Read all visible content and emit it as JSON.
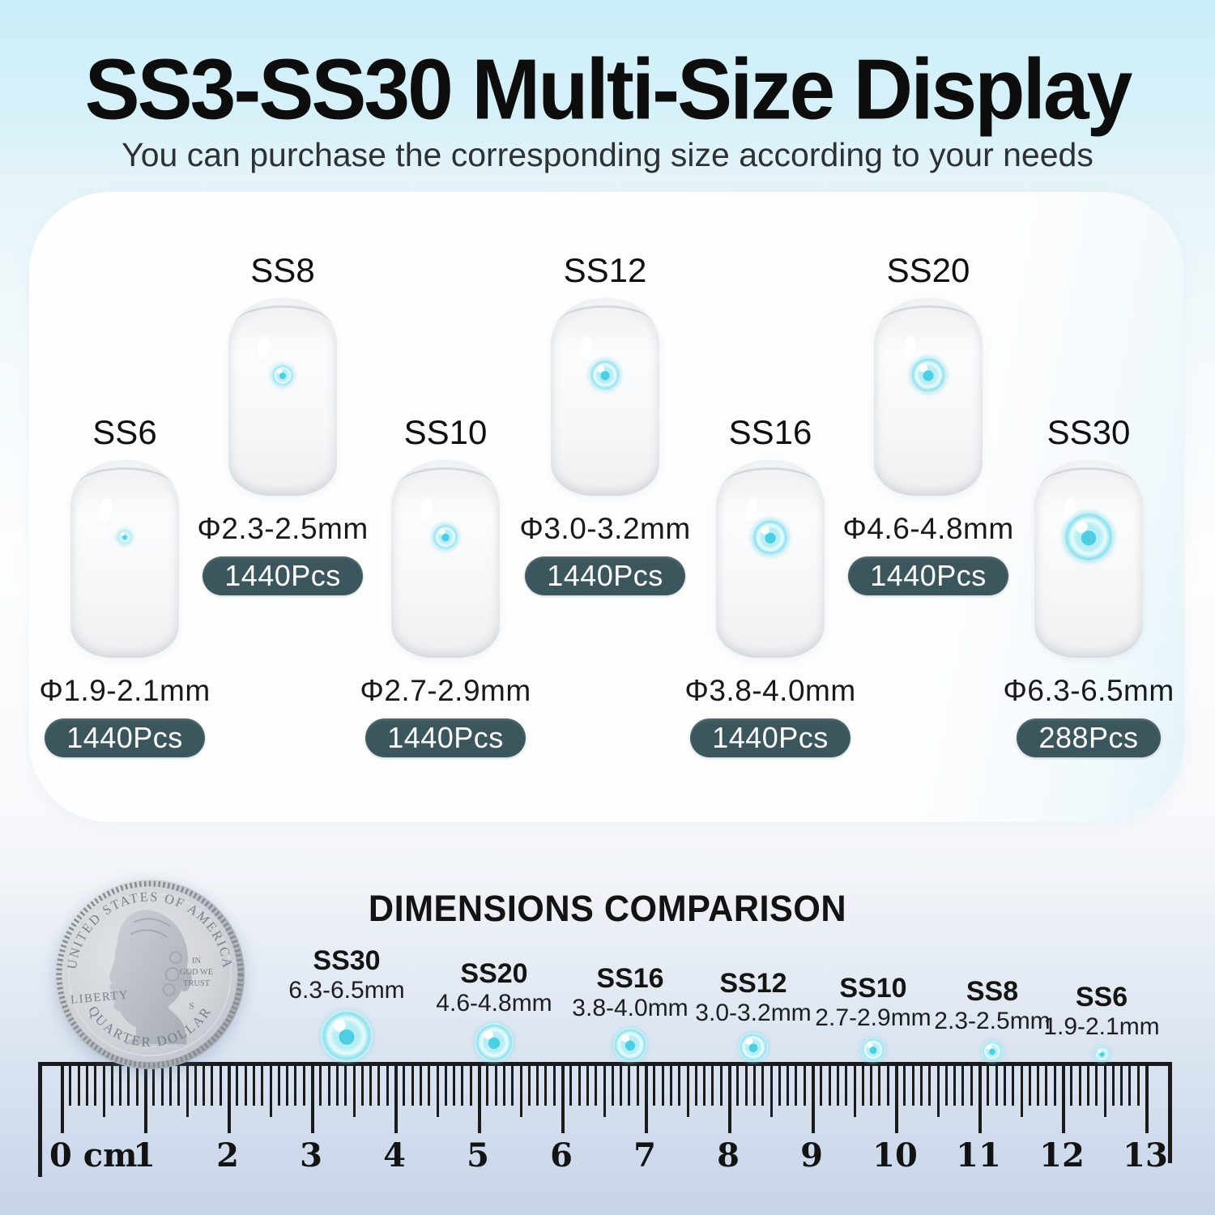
{
  "header": {
    "title": "SS3-SS30 Multi-Size Display",
    "subtitle": "You can purchase the corresponding size according to your needs"
  },
  "display": {
    "items": [
      {
        "name": "SS6",
        "diameter": "Φ1.9-2.1mm",
        "count": "1440Pcs"
      },
      {
        "name": "SS8",
        "diameter": "Φ2.3-2.5mm",
        "count": "1440Pcs"
      },
      {
        "name": "SS10",
        "diameter": "Φ2.7-2.9mm",
        "count": "1440Pcs"
      },
      {
        "name": "SS12",
        "diameter": "Φ3.0-3.2mm",
        "count": "1440Pcs"
      },
      {
        "name": "SS16",
        "diameter": "Φ3.8-4.0mm",
        "count": "1440Pcs"
      },
      {
        "name": "SS20",
        "diameter": "Φ4.6-4.8mm",
        "count": "1440Pcs"
      },
      {
        "name": "SS30",
        "diameter": "Φ6.3-6.5mm",
        "count": "288Pcs"
      }
    ]
  },
  "comparison": {
    "heading": "DIMENSIONS COMPARISON",
    "coin": {
      "top_text": "UNITED STATES OF AMERICA",
      "bottom_text": "QUARTER DOLLAR",
      "left_text": "LIBERTY",
      "motto_line1": "IN",
      "motto_line2": "GOD WE",
      "motto_line3": "TRUST",
      "mint_mark": "S"
    },
    "stones": [
      {
        "name": "SS30",
        "size": "6.3-6.5mm"
      },
      {
        "name": "SS20",
        "size": "4.6-4.8mm"
      },
      {
        "name": "SS16",
        "size": "3.8-4.0mm"
      },
      {
        "name": "SS12",
        "size": "3.0-3.2mm"
      },
      {
        "name": "SS10",
        "size": "2.7-2.9mm"
      },
      {
        "name": "SS8",
        "size": "2.3-2.5mm"
      },
      {
        "name": "SS6",
        "size": "1.9-2.1mm"
      }
    ],
    "ruler": {
      "numbers": [
        "0 cm",
        "1",
        "2",
        "3",
        "4",
        "5",
        "6",
        "7",
        "8",
        "9",
        "10",
        "11",
        "12",
        "13"
      ]
    }
  },
  "colors": {
    "badge_bg": "#3b565d",
    "stone_aqua": "#6fd8e9",
    "title_ink": "#0d0d0d",
    "ruler_ink": "#1b1b1b",
    "coin_silver": "#c9cdd3",
    "bg_top": "#cbeef8",
    "bg_bottom": "#c6d4e9"
  }
}
